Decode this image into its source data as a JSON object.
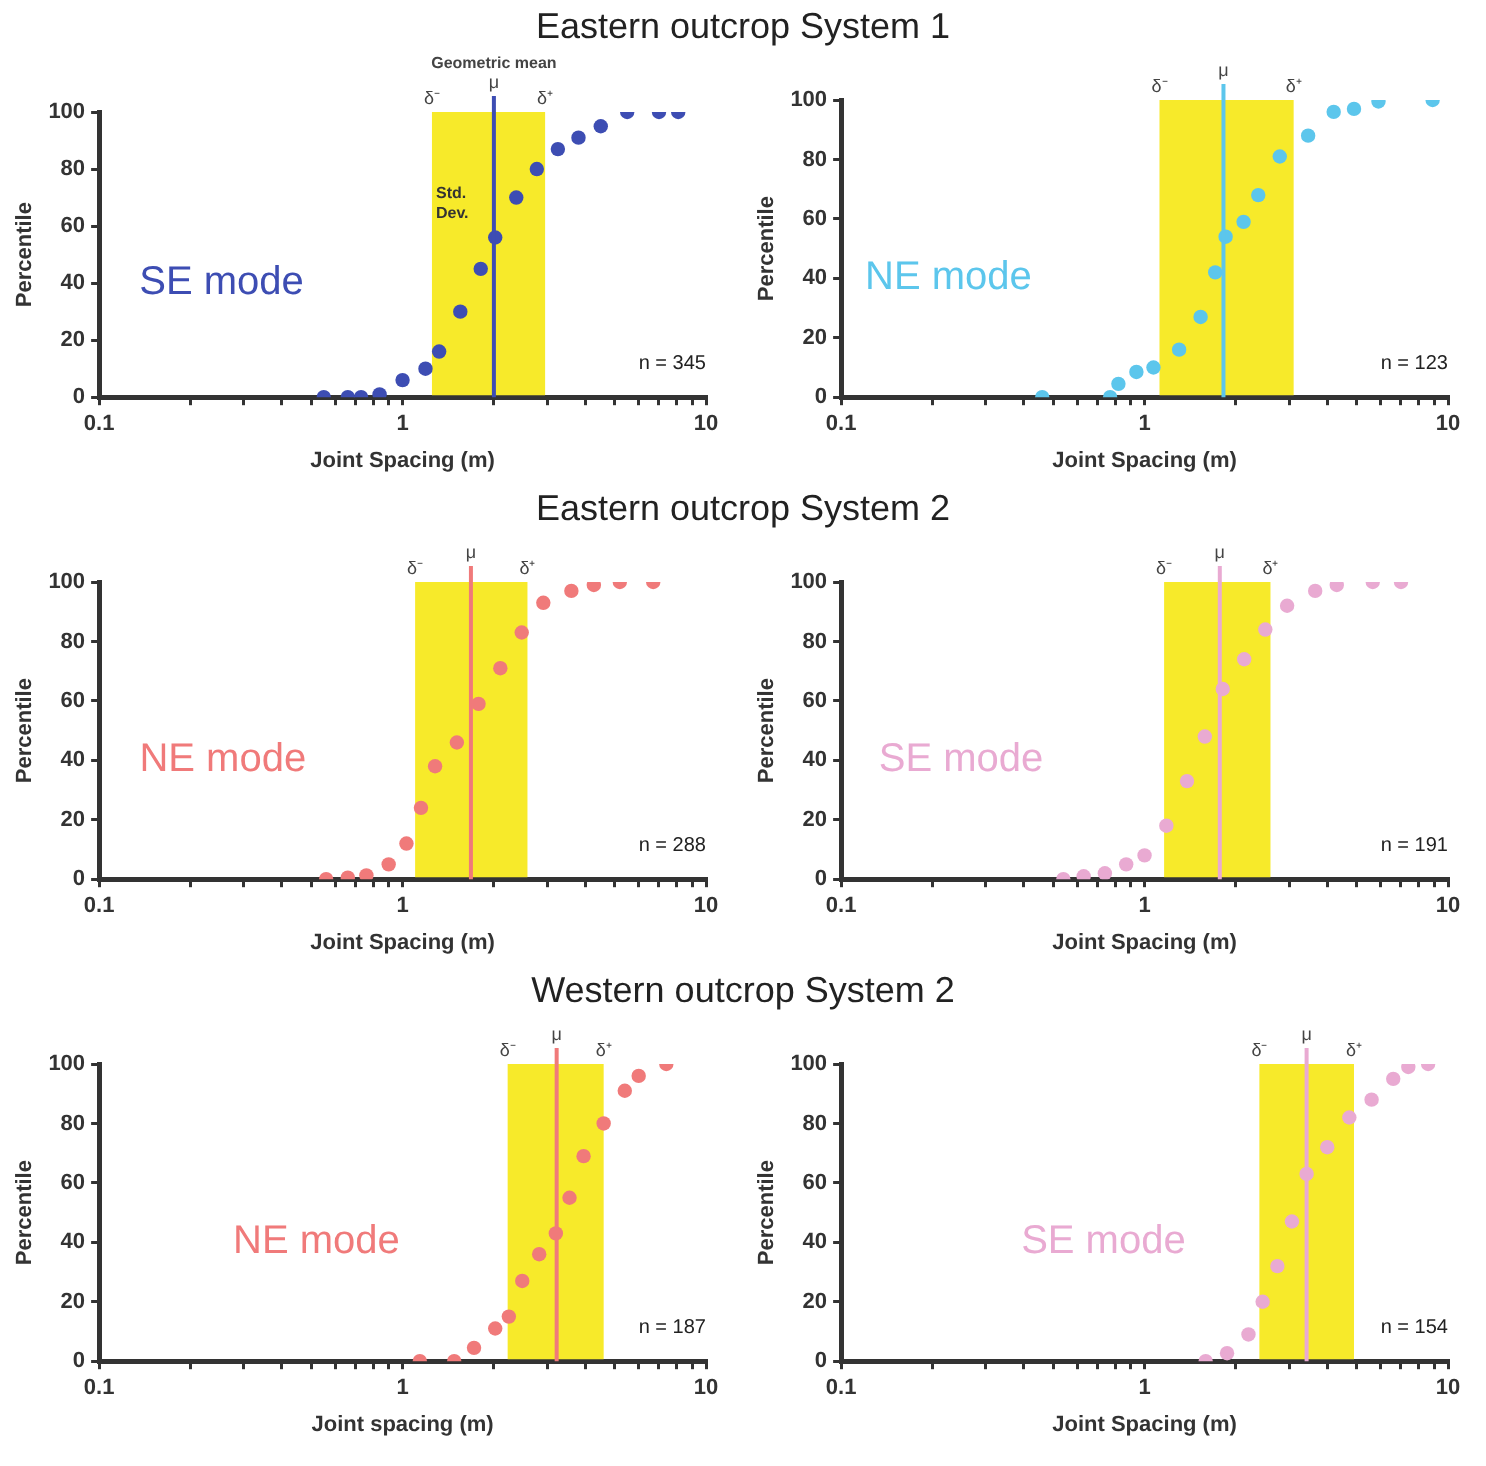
{
  "chart_data": [
    {
      "type": "scatter",
      "title": "Eastern outcrop System 1",
      "xlabel": "Joint Spacing (m)",
      "ylabel": "Percentile",
      "log": "x",
      "marker": "circle",
      "xlim": [
        0.1,
        10
      ],
      "ylim": [
        0,
        100
      ],
      "xticks": [
        0.1,
        {
          "value": 0.2,
          "label": null
        },
        {
          "value": 0.3,
          "label": null
        },
        {
          "value": 0.4,
          "label": null
        },
        {
          "value": 0.5,
          "label": null
        },
        {
          "value": 0.6,
          "label": null
        },
        {
          "value": 0.7,
          "label": null
        },
        {
          "value": 0.8,
          "label": null
        },
        {
          "value": 0.9,
          "label": null
        },
        1,
        {
          "value": 2,
          "label": null
        },
        {
          "value": 3,
          "label": null
        },
        {
          "value": 4,
          "label": null
        },
        {
          "value": 5,
          "label": null
        },
        {
          "value": 6,
          "label": null
        },
        {
          "value": 7,
          "label": null
        },
        {
          "value": 8,
          "label": null
        },
        {
          "value": 9,
          "label": null
        },
        10
      ],
      "yticks": [
        0,
        20,
        40,
        60,
        80,
        100
      ],
      "series": [
        {
          "name": "SE mode",
          "color": "#3d4db3",
          "x": [
            0.55,
            0.66,
            0.73,
            0.84,
            1.0,
            1.19,
            1.32,
            1.55,
            1.81,
            2.02,
            2.37,
            2.77,
            3.25,
            3.8,
            4.5,
            5.5,
            7.0,
            8.1
          ],
          "values": [
            0,
            0,
            0,
            1,
            6,
            10,
            16,
            30,
            45,
            56,
            70,
            80,
            87,
            91,
            95,
            100,
            100,
            100
          ]
        }
      ],
      "bands": [
        {
          "axis": "x",
          "from": 1.25,
          "to": 2.95,
          "label": "Std. Dev.",
          "color": "#f7ea2a"
        }
      ],
      "ref_lines": [
        {
          "axis": "x",
          "value": 2.0,
          "label": "μ",
          "color": "#3d4db3"
        }
      ],
      "annotations": [
        "Geometric mean",
        {
          "text": "δ⁻",
          "x": 1.25,
          "y": 100
        },
        {
          "text": "δ⁺",
          "x": 2.95,
          "y": 100
        },
        "n = 345"
      ]
    },
    {
      "type": "scatter",
      "xlabel": "Joint Spacing (m)",
      "ylabel": "Percentile",
      "log": "x",
      "marker": "circle",
      "xlim": [
        0.1,
        10
      ],
      "ylim": [
        0,
        100
      ],
      "xticks": [
        0.1,
        {
          "value": 0.2,
          "label": null
        },
        {
          "value": 0.3,
          "label": null
        },
        {
          "value": 0.4,
          "label": null
        },
        {
          "value": 0.5,
          "label": null
        },
        {
          "value": 0.6,
          "label": null
        },
        {
          "value": 0.7,
          "label": null
        },
        {
          "value": 0.8,
          "label": null
        },
        {
          "value": 0.9,
          "label": null
        },
        1,
        {
          "value": 2,
          "label": null
        },
        {
          "value": 3,
          "label": null
        },
        {
          "value": 4,
          "label": null
        },
        {
          "value": 5,
          "label": null
        },
        {
          "value": 6,
          "label": null
        },
        {
          "value": 7,
          "label": null
        },
        {
          "value": 8,
          "label": null
        },
        {
          "value": 9,
          "label": null
        },
        10
      ],
      "yticks": [
        0,
        20,
        40,
        60,
        80,
        100
      ],
      "series": [
        {
          "name": "NE mode",
          "color": "#5cc6ec",
          "x": [
            0.46,
            0.77,
            0.82,
            0.94,
            1.07,
            1.3,
            1.53,
            1.71,
            1.85,
            2.12,
            2.37,
            2.79,
            3.46,
            4.2,
            4.9,
            5.9,
            8.9
          ],
          "values": [
            0,
            0,
            4.5,
            8.5,
            10,
            16,
            27,
            42,
            54,
            59,
            68,
            81,
            88,
            96,
            97,
            99.5,
            100
          ]
        }
      ],
      "bands": [
        {
          "axis": "x",
          "from": 1.12,
          "to": 3.1,
          "color": "#f7ea2a"
        }
      ],
      "ref_lines": [
        {
          "axis": "x",
          "value": 1.82,
          "label": "μ",
          "color": "#5cc6ec"
        }
      ],
      "annotations": [
        {
          "text": "δ⁻",
          "x": 1.12,
          "y": 100
        },
        {
          "text": "δ⁺",
          "x": 3.1,
          "y": 100
        },
        "n = 123"
      ]
    },
    {
      "type": "scatter",
      "title": "Eastern outcrop System 2",
      "xlabel": "Joint Spacing (m)",
      "ylabel": "Percentile",
      "log": "x",
      "marker": "circle",
      "xlim": [
        0.1,
        10
      ],
      "ylim": [
        0,
        100
      ],
      "xticks": [
        0.1,
        {
          "value": 0.2,
          "label": null
        },
        {
          "value": 0.3,
          "label": null
        },
        {
          "value": 0.4,
          "label": null
        },
        {
          "value": 0.5,
          "label": null
        },
        {
          "value": 0.6,
          "label": null
        },
        {
          "value": 0.7,
          "label": null
        },
        {
          "value": 0.8,
          "label": null
        },
        {
          "value": 0.9,
          "label": null
        },
        1,
        {
          "value": 2,
          "label": null
        },
        {
          "value": 3,
          "label": null
        },
        {
          "value": 4,
          "label": null
        },
        {
          "value": 5,
          "label": null
        },
        {
          "value": 6,
          "label": null
        },
        {
          "value": 7,
          "label": null
        },
        {
          "value": 8,
          "label": null
        },
        {
          "value": 9,
          "label": null
        },
        10
      ],
      "yticks": [
        0,
        20,
        40,
        60,
        80,
        100
      ],
      "series": [
        {
          "name": "NE mode",
          "color": "#f07a7a",
          "x": [
            0.56,
            0.66,
            0.76,
            0.9,
            1.03,
            1.15,
            1.28,
            1.51,
            1.78,
            2.1,
            2.47,
            2.91,
            3.6,
            4.27,
            5.2,
            6.7
          ],
          "values": [
            0,
            0.5,
            1.3,
            5,
            12,
            24,
            38,
            46,
            59,
            71,
            83,
            93,
            97,
            99,
            100,
            100
          ]
        }
      ],
      "bands": [
        {
          "axis": "x",
          "from": 1.1,
          "to": 2.58,
          "color": "#f7ea2a"
        }
      ],
      "ref_lines": [
        {
          "axis": "x",
          "value": 1.68,
          "label": "μ",
          "color": "#f07a7a"
        }
      ],
      "annotations": [
        {
          "text": "δ⁻",
          "x": 1.1,
          "y": 100
        },
        {
          "text": "δ⁺",
          "x": 2.58,
          "y": 100
        },
        "n = 288"
      ]
    },
    {
      "type": "scatter",
      "xlabel": "Joint Spacing (m)",
      "ylabel": "Percentile",
      "log": "x",
      "marker": "circle",
      "xlim": [
        0.1,
        10
      ],
      "ylim": [
        0,
        100
      ],
      "xticks": [
        0.1,
        {
          "value": 0.2,
          "label": null
        },
        {
          "value": 0.3,
          "label": null
        },
        {
          "value": 0.4,
          "label": null
        },
        {
          "value": 0.5,
          "label": null
        },
        {
          "value": 0.6,
          "label": null
        },
        {
          "value": 0.7,
          "label": null
        },
        {
          "value": 0.8,
          "label": null
        },
        {
          "value": 0.9,
          "label": null
        },
        1,
        {
          "value": 2,
          "label": null
        },
        {
          "value": 3,
          "label": null
        },
        {
          "value": 4,
          "label": null
        },
        {
          "value": 5,
          "label": null
        },
        {
          "value": 6,
          "label": null
        },
        {
          "value": 7,
          "label": null
        },
        {
          "value": 8,
          "label": null
        },
        {
          "value": 9,
          "label": null
        },
        10
      ],
      "yticks": [
        0,
        20,
        40,
        60,
        80,
        100
      ],
      "series": [
        {
          "name": "SE mode",
          "color": "#e9aad2",
          "x": [
            0.54,
            0.63,
            0.74,
            0.87,
            1.0,
            1.18,
            1.38,
            1.58,
            1.81,
            2.13,
            2.5,
            2.95,
            3.65,
            4.3,
            5.65,
            7.0
          ],
          "values": [
            0,
            1,
            2,
            5,
            8,
            18,
            33,
            48,
            64,
            74,
            84,
            92,
            97,
            99,
            100,
            100
          ]
        }
      ],
      "bands": [
        {
          "axis": "x",
          "from": 1.16,
          "to": 2.6,
          "color": "#f7ea2a"
        }
      ],
      "ref_lines": [
        {
          "axis": "x",
          "value": 1.77,
          "label": "μ",
          "color": "#e9aad2"
        }
      ],
      "annotations": [
        {
          "text": "δ⁻",
          "x": 1.16,
          "y": 100
        },
        {
          "text": "δ⁺",
          "x": 2.6,
          "y": 100
        },
        "n = 191"
      ]
    },
    {
      "type": "scatter",
      "title": "Western outcrop System 2",
      "xlabel": "Joint spacing (m)",
      "ylabel": "Percentile",
      "log": "x",
      "marker": "circle",
      "xlim": [
        0.1,
        10
      ],
      "ylim": [
        0,
        100
      ],
      "xticks": [
        0.1,
        {
          "value": 0.2,
          "label": null
        },
        {
          "value": 0.3,
          "label": null
        },
        {
          "value": 0.4,
          "label": null
        },
        {
          "value": 0.5,
          "label": null
        },
        {
          "value": 0.6,
          "label": null
        },
        {
          "value": 0.7,
          "label": null
        },
        {
          "value": 0.8,
          "label": null
        },
        {
          "value": 0.9,
          "label": null
        },
        1,
        {
          "value": 2,
          "label": null
        },
        {
          "value": 3,
          "label": null
        },
        {
          "value": 4,
          "label": null
        },
        {
          "value": 5,
          "label": null
        },
        {
          "value": 6,
          "label": null
        },
        {
          "value": 7,
          "label": null
        },
        {
          "value": 8,
          "label": null
        },
        {
          "value": 9,
          "label": null
        },
        10
      ],
      "yticks": [
        0,
        20,
        40,
        60,
        80,
        100
      ],
      "series": [
        {
          "name": "NE mode",
          "color": "#f07a7a",
          "x": [
            1.14,
            1.48,
            1.72,
            2.02,
            2.24,
            2.48,
            2.82,
            3.2,
            3.55,
            3.95,
            4.6,
            5.4,
            6.0,
            7.4
          ],
          "values": [
            0,
            0,
            4.5,
            11,
            15,
            27,
            36,
            43,
            55,
            69,
            80,
            91,
            96,
            100
          ]
        }
      ],
      "bands": [
        {
          "axis": "x",
          "from": 2.22,
          "to": 4.6,
          "color": "#f7ea2a"
        }
      ],
      "ref_lines": [
        {
          "axis": "x",
          "value": 3.22,
          "label": "μ",
          "color": "#f07a7a"
        }
      ],
      "annotations": [
        {
          "text": "δ⁻",
          "x": 2.22,
          "y": 100
        },
        {
          "text": "δ⁺",
          "x": 4.6,
          "y": 100
        },
        "n = 187"
      ]
    },
    {
      "type": "scatter",
      "xlabel": "Joint Spacing (m)",
      "ylabel": "Percentile",
      "log": "x",
      "marker": "circle",
      "xlim": [
        0.1,
        10
      ],
      "ylim": [
        0,
        100
      ],
      "xticks": [
        0.1,
        {
          "value": 0.2,
          "label": null
        },
        {
          "value": 0.3,
          "label": null
        },
        {
          "value": 0.4,
          "label": null
        },
        {
          "value": 0.5,
          "label": null
        },
        {
          "value": 0.6,
          "label": null
        },
        {
          "value": 0.7,
          "label": null
        },
        {
          "value": 0.8,
          "label": null
        },
        {
          "value": 0.9,
          "label": null
        },
        1,
        {
          "value": 2,
          "label": null
        },
        {
          "value": 3,
          "label": null
        },
        {
          "value": 4,
          "label": null
        },
        {
          "value": 5,
          "label": null
        },
        {
          "value": 6,
          "label": null
        },
        {
          "value": 7,
          "label": null
        },
        {
          "value": 8,
          "label": null
        },
        {
          "value": 9,
          "label": null
        },
        10
      ],
      "yticks": [
        0,
        20,
        40,
        60,
        80,
        100
      ],
      "series": [
        {
          "name": "SE mode",
          "color": "#e9aad2",
          "x": [
            1.59,
            1.87,
            2.2,
            2.45,
            2.74,
            3.06,
            3.42,
            4.0,
            4.73,
            5.6,
            6.6,
            7.4,
            8.6
          ],
          "values": [
            0,
            2.7,
            9,
            20,
            32,
            47,
            63,
            72,
            82,
            88,
            95,
            99,
            100
          ]
        }
      ],
      "bands": [
        {
          "axis": "x",
          "from": 2.39,
          "to": 4.9,
          "color": "#f7ea2a"
        }
      ],
      "ref_lines": [
        {
          "axis": "x",
          "value": 3.42,
          "label": "μ",
          "color": "#e9aad2"
        }
      ],
      "annotations": [
        {
          "text": "δ⁻",
          "x": 2.39,
          "y": 100
        },
        {
          "text": "δ⁺",
          "x": 4.9,
          "y": 100
        },
        "n = 154"
      ]
    }
  ]
}
